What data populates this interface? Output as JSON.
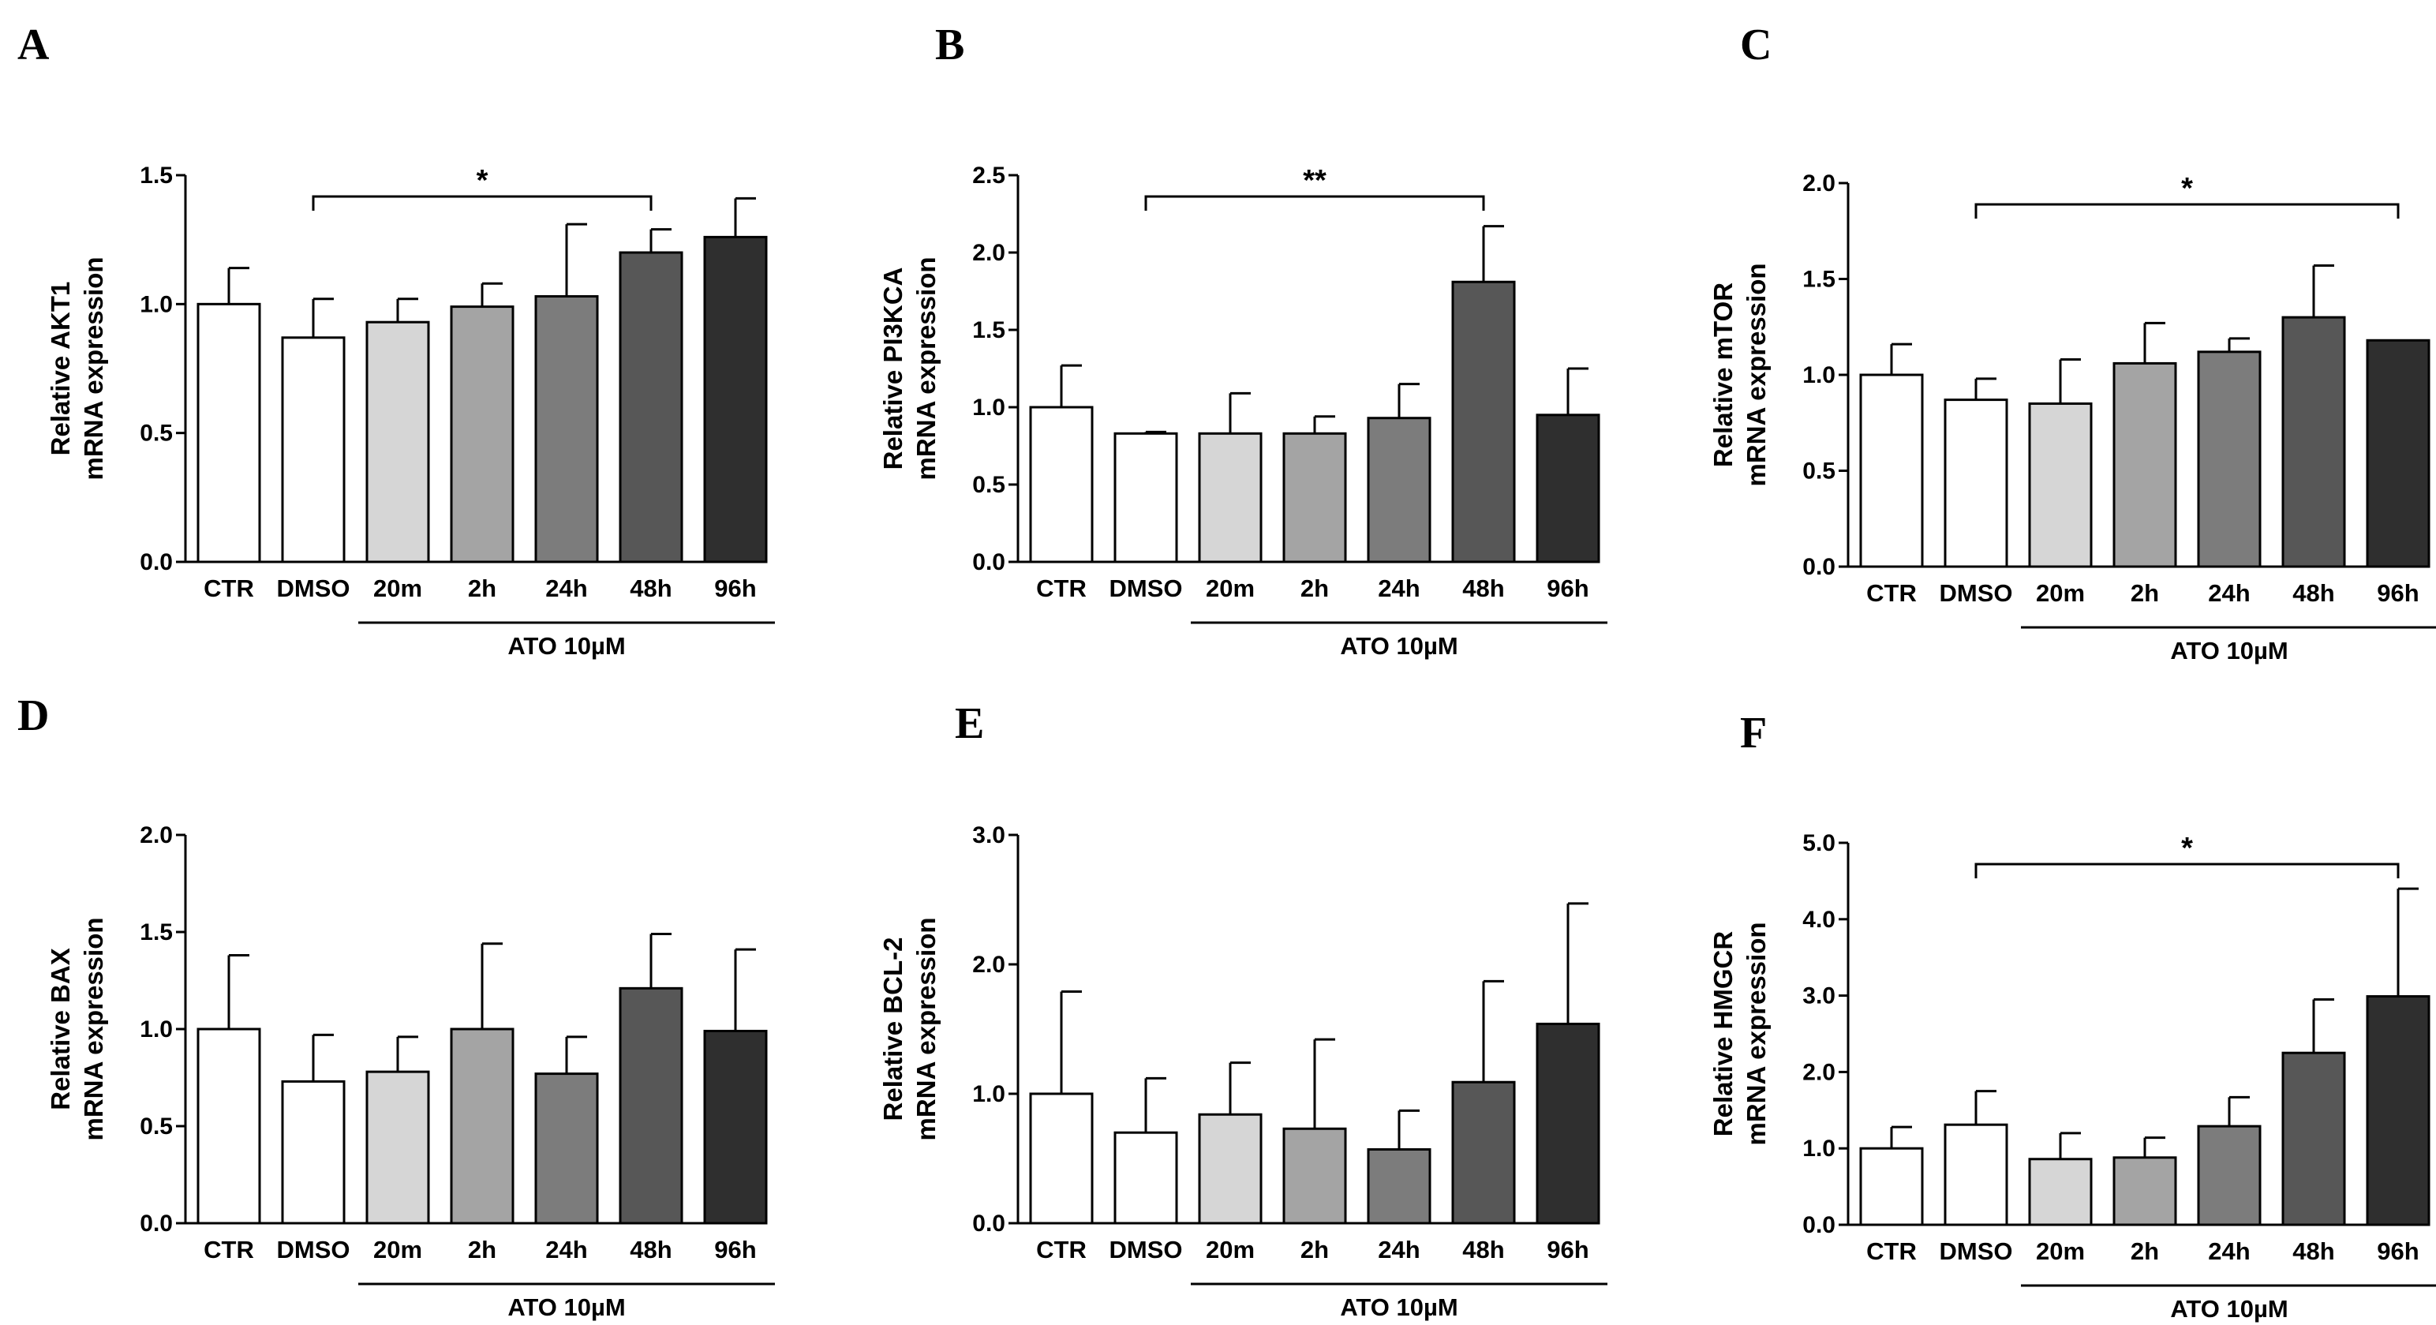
{
  "colors": {
    "bars": [
      "#ffffff",
      "#ffffff",
      "#d6d6d6",
      "#a4a4a4",
      "#7c7c7c",
      "#575757",
      "#2f2f2f"
    ],
    "axis": "#000000"
  },
  "chart_data": [
    {
      "type": "bar",
      "panel": "A",
      "categories": [
        "CTR",
        "DMSO",
        "20m",
        "2h",
        "24h",
        "48h",
        "96h"
      ],
      "values": [
        1.0,
        0.87,
        0.93,
        0.99,
        1.03,
        1.2,
        1.26
      ],
      "errors": [
        0.14,
        0.15,
        0.09,
        0.09,
        0.28,
        0.09,
        0.15
      ],
      "ylabel_line1": "Relative AKT1",
      "ylabel_line2": "mRNA expression",
      "ylim": [
        0,
        1.5
      ],
      "yticks": [
        "0.0",
        "0.5",
        "1.0",
        "1.5"
      ],
      "treatment_label": "ATO 10µM",
      "significance": {
        "label": "*",
        "from": "DMSO",
        "to": "48h"
      }
    },
    {
      "type": "bar",
      "panel": "B",
      "categories": [
        "CTR",
        "DMSO",
        "20m",
        "2h",
        "24h",
        "48h",
        "96h"
      ],
      "values": [
        1.0,
        0.83,
        0.83,
        0.83,
        0.93,
        1.81,
        0.95
      ],
      "errors": [
        0.27,
        0.01,
        0.26,
        0.11,
        0.22,
        0.36,
        0.3
      ],
      "ylabel_line1": "Relative PI3KCA",
      "ylabel_line2": "mRNA expression",
      "ylim": [
        0,
        2.5
      ],
      "yticks": [
        "0.0",
        "0.5",
        "1.0",
        "1.5",
        "2.0",
        "2.5"
      ],
      "treatment_label": "ATO 10µM",
      "significance": {
        "label": "**",
        "from": "DMSO",
        "to": "48h"
      }
    },
    {
      "type": "bar",
      "panel": "C",
      "categories": [
        "CTR",
        "DMSO",
        "20m",
        "2h",
        "24h",
        "48h",
        "96h"
      ],
      "values": [
        1.0,
        0.87,
        0.85,
        1.06,
        1.12,
        1.3,
        1.18
      ],
      "errors": [
        0.16,
        0.11,
        0.23,
        0.21,
        0.07,
        0.27,
        0.0
      ],
      "ylabel_line1": "Relative mTOR",
      "ylabel_line2": "mRNA expression",
      "ylim": [
        0,
        2.0
      ],
      "yticks": [
        "0.0",
        "0.5",
        "1.0",
        "1.5",
        "2.0"
      ],
      "treatment_label": "ATO 10µM",
      "significance": {
        "label": "*",
        "from": "DMSO",
        "to": "96h"
      }
    },
    {
      "type": "bar",
      "panel": "D",
      "categories": [
        "CTR",
        "DMSO",
        "20m",
        "2h",
        "24h",
        "48h",
        "96h"
      ],
      "values": [
        1.0,
        0.73,
        0.78,
        1.0,
        0.77,
        1.21,
        0.99
      ],
      "errors": [
        0.38,
        0.24,
        0.18,
        0.44,
        0.19,
        0.28,
        0.42
      ],
      "ylabel_line1": "Relative BAX",
      "ylabel_line2": "mRNA expression",
      "ylim": [
        0,
        2.0
      ],
      "yticks": [
        "0.0",
        "0.5",
        "1.0",
        "1.5",
        "2.0"
      ],
      "treatment_label": "ATO 10µM",
      "significance": null
    },
    {
      "type": "bar",
      "panel": "E",
      "categories": [
        "CTR",
        "DMSO",
        "20m",
        "2h",
        "24h",
        "48h",
        "96h"
      ],
      "values": [
        1.0,
        0.7,
        0.84,
        0.73,
        0.57,
        1.09,
        1.54
      ],
      "errors": [
        0.79,
        0.42,
        0.4,
        0.69,
        0.3,
        0.78,
        0.93
      ],
      "ylabel_line1": "Relative BCL-2",
      "ylabel_line2": "mRNA expression",
      "ylim": [
        0,
        3.0
      ],
      "yticks": [
        "0.0",
        "1.0",
        "2.0",
        "3.0"
      ],
      "treatment_label": "ATO 10µM",
      "significance": null
    },
    {
      "type": "bar",
      "panel": "F",
      "categories": [
        "CTR",
        "DMSO",
        "20m",
        "2h",
        "24h",
        "48h",
        "96h"
      ],
      "values": [
        1.0,
        1.31,
        0.86,
        0.88,
        1.29,
        2.25,
        2.99
      ],
      "errors": [
        0.28,
        0.44,
        0.34,
        0.26,
        0.38,
        0.7,
        1.41
      ],
      "ylabel_line1": "Relative HMGCR",
      "ylabel_line2": "mRNA expression",
      "ylim": [
        0,
        5.0
      ],
      "yticks": [
        "0.0",
        "1.0",
        "2.0",
        "3.0",
        "4.0",
        "5.0"
      ],
      "treatment_label": "ATO 10µM",
      "significance": {
        "label": "*",
        "from": "DMSO",
        "to": "96h"
      }
    }
  ]
}
